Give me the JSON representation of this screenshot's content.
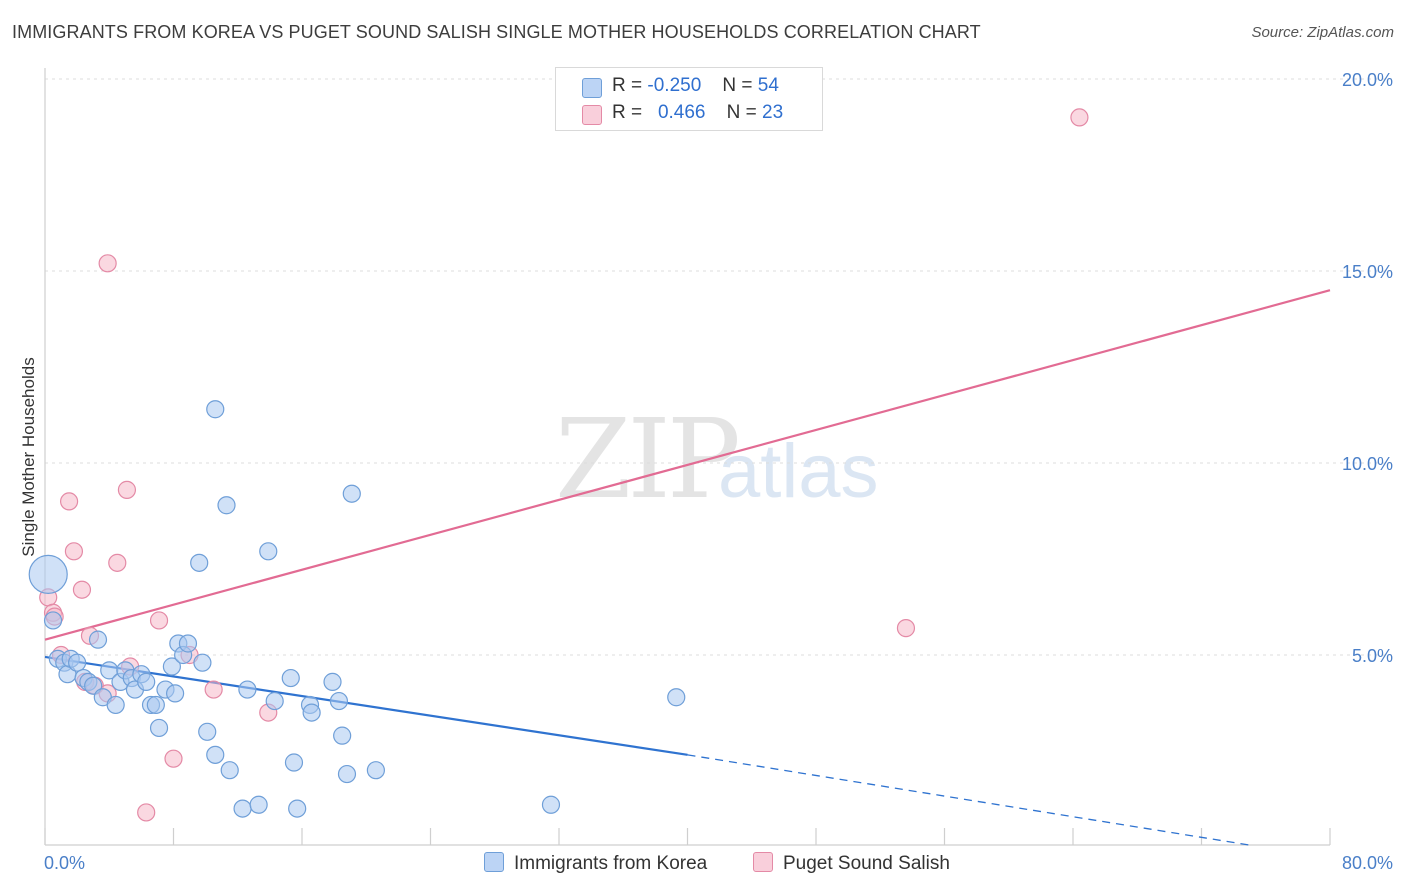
{
  "header": {
    "title": "IMMIGRANTS FROM KOREA VS PUGET SOUND SALISH SINGLE MOTHER HOUSEHOLDS CORRELATION CHART",
    "source": "Source: ZipAtlas.com"
  },
  "watermark": {
    "zip": "ZIP",
    "atlas": "atlas"
  },
  "legend": {
    "rows": [
      {
        "r_label": "R =",
        "r_value": "-0.250",
        "n_label": "N =",
        "n_value": "54",
        "color": "#a9c8f0"
      },
      {
        "r_label": "R =",
        "r_value": "0.466",
        "n_label": "N =",
        "n_value": "23",
        "color": "#f5b8c8"
      }
    ]
  },
  "bottom_legend": {
    "korea": "Immigrants from Korea",
    "salish": "Puget Sound Salish"
  },
  "colors": {
    "korea_fill": "#a9c8f0",
    "korea_stroke": "#6f9fd8",
    "korea_line": "#2f73d0",
    "salish_fill": "#f5b8c8",
    "salish_stroke": "#e48aa6",
    "salish_line": "#e26b93",
    "grid": "#dddddd",
    "tick_text": "#4a7fc8"
  },
  "chart_data": {
    "type": "scatter",
    "title": "IMMIGRANTS FROM KOREA VS PUGET SOUND SALISH SINGLE MOTHER HOUSEHOLDS CORRELATION CHART",
    "xlabel": "",
    "ylabel": "Single Mother Households",
    "xlim": [
      0,
      80
    ],
    "ylim": [
      0,
      20.5
    ],
    "x_tick_labels": [
      "0.0%",
      "80.0%"
    ],
    "y_ticks": [
      5,
      10,
      15,
      20
    ],
    "y_tick_labels": [
      "5.0%",
      "10.0%",
      "15.0%",
      "20.0%"
    ],
    "grid": "horizontal dashed",
    "series": [
      {
        "name": "Immigrants from Korea",
        "points": [
          [
            0.2,
            7.1
          ],
          [
            0.5,
            5.9
          ],
          [
            0.8,
            4.9
          ],
          [
            1.2,
            4.8
          ],
          [
            1.4,
            4.5
          ],
          [
            1.6,
            4.9
          ],
          [
            2.0,
            4.8
          ],
          [
            2.4,
            4.4
          ],
          [
            2.7,
            4.3
          ],
          [
            3.0,
            4.2
          ],
          [
            3.3,
            5.4
          ],
          [
            3.6,
            3.9
          ],
          [
            4.0,
            4.6
          ],
          [
            4.4,
            3.7
          ],
          [
            4.7,
            4.3
          ],
          [
            5.0,
            4.6
          ],
          [
            5.4,
            4.4
          ],
          [
            5.6,
            4.1
          ],
          [
            6.0,
            4.5
          ],
          [
            6.3,
            4.3
          ],
          [
            6.6,
            3.7
          ],
          [
            6.9,
            3.7
          ],
          [
            7.1,
            3.1
          ],
          [
            7.5,
            4.1
          ],
          [
            7.9,
            4.7
          ],
          [
            8.1,
            4.0
          ],
          [
            8.3,
            5.3
          ],
          [
            8.6,
            5.0
          ],
          [
            8.9,
            5.3
          ],
          [
            9.6,
            7.4
          ],
          [
            9.8,
            4.8
          ],
          [
            10.1,
            3.0
          ],
          [
            10.6,
            2.4
          ],
          [
            10.6,
            11.4
          ],
          [
            11.3,
            8.9
          ],
          [
            11.5,
            2.0
          ],
          [
            12.3,
            1.0
          ],
          [
            12.6,
            4.1
          ],
          [
            13.3,
            1.1
          ],
          [
            13.9,
            7.7
          ],
          [
            14.3,
            3.8
          ],
          [
            15.3,
            4.4
          ],
          [
            15.5,
            2.2
          ],
          [
            15.7,
            1.0
          ],
          [
            16.5,
            3.7
          ],
          [
            16.6,
            3.5
          ],
          [
            17.9,
            4.3
          ],
          [
            18.3,
            3.8
          ],
          [
            18.5,
            2.9
          ],
          [
            18.8,
            1.9
          ],
          [
            19.1,
            9.2
          ],
          [
            20.6,
            2.0
          ],
          [
            31.5,
            1.1
          ],
          [
            39.3,
            3.9
          ]
        ]
      },
      {
        "name": "Puget Sound Salish",
        "points": [
          [
            0.2,
            6.5
          ],
          [
            0.5,
            6.1
          ],
          [
            0.6,
            6.0
          ],
          [
            1.0,
            5.0
          ],
          [
            1.5,
            9.0
          ],
          [
            1.8,
            7.7
          ],
          [
            2.3,
            6.7
          ],
          [
            2.5,
            4.3
          ],
          [
            2.8,
            5.5
          ],
          [
            3.1,
            4.2
          ],
          [
            3.9,
            4.0
          ],
          [
            3.9,
            15.2
          ],
          [
            4.5,
            7.4
          ],
          [
            5.1,
            9.3
          ],
          [
            5.3,
            4.7
          ],
          [
            6.3,
            0.9
          ],
          [
            7.1,
            5.9
          ],
          [
            8.0,
            2.3
          ],
          [
            9.0,
            5.0
          ],
          [
            10.5,
            4.1
          ],
          [
            13.9,
            3.5
          ],
          [
            53.6,
            5.7
          ],
          [
            64.4,
            19.0
          ]
        ]
      }
    ],
    "trend_lines": [
      {
        "series": "Immigrants from Korea",
        "x0": 0,
        "y0": 4.95,
        "x1": 40,
        "y1": 2.4,
        "extends_dashed_to": [
          75,
          0.05
        ]
      },
      {
        "series": "Puget Sound Salish",
        "x0": 0,
        "y0": 5.4,
        "x1": 80,
        "y1": 14.5
      }
    ]
  }
}
